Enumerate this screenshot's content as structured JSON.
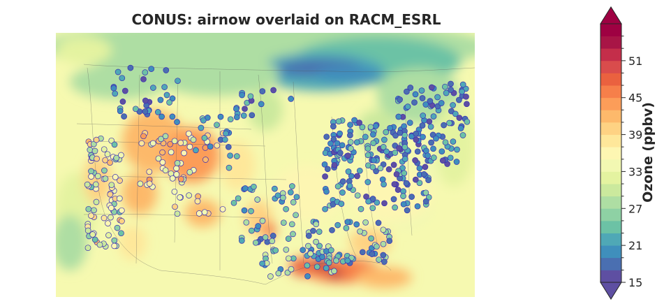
{
  "title": "CONUS: airnow overlaid on RACM_ESRL",
  "colorbar": {
    "label": "Ozone (ppbv)",
    "min": 15,
    "max": 57,
    "step": 2,
    "extend": "both",
    "tick_labels": [
      "15",
      "21",
      "27",
      "33",
      "39",
      "45",
      "51"
    ],
    "colormap": [
      "#5e4fa2",
      "#4a6fb1",
      "#3f8fbc",
      "#4fa8b6",
      "#6cc2a5",
      "#8ed1a4",
      "#aedea3",
      "#cbe99d",
      "#e4f3a0",
      "#f2f8b2",
      "#fdf6b2",
      "#fee79a",
      "#fed283",
      "#fdb96b",
      "#fc9d59",
      "#f67f4a",
      "#ea613f",
      "#d94c4c",
      "#c42e4a",
      "#a81546",
      "#9e0142"
    ]
  },
  "map": {
    "region": "CONUS",
    "model": "RACM_ESRL",
    "observations": "airnow",
    "variable": "Ozone",
    "units": "ppbv"
  }
}
